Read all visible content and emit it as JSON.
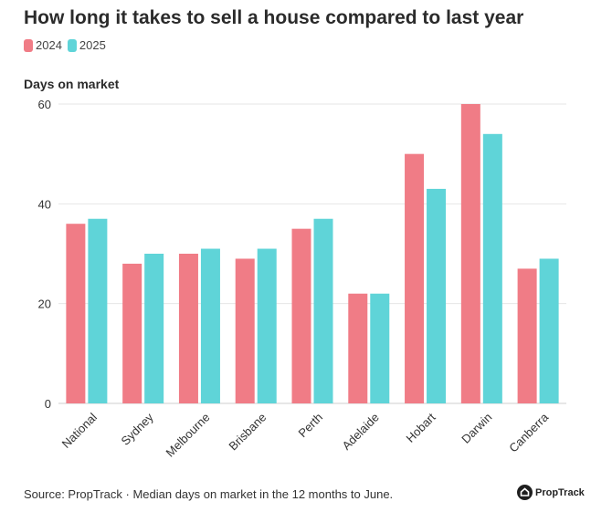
{
  "chart_data": {
    "type": "bar",
    "title": "How long it takes to sell a house compared to last year",
    "ylabel": "Days on market",
    "xlabel": "",
    "categories": [
      "National",
      "Sydney",
      "Melbourne",
      "Brisbane",
      "Perth",
      "Adelaide",
      "Hobart",
      "Darwin",
      "Canberra"
    ],
    "series": [
      {
        "name": "2024",
        "color": "#f07c86",
        "values": [
          36,
          28,
          30,
          29,
          35,
          22,
          50,
          60,
          27
        ]
      },
      {
        "name": "2025",
        "color": "#5fd4d8",
        "values": [
          37,
          30,
          31,
          31,
          37,
          22,
          43,
          54,
          29
        ]
      }
    ],
    "ylim": [
      0,
      60
    ],
    "yticks": [
      0,
      20,
      40,
      60
    ],
    "grid": true,
    "legend_position": "top-left"
  },
  "footer": {
    "source": "Source: PropTrack · Median days on market in the 12 months to June.",
    "brand": "PropTrack"
  }
}
